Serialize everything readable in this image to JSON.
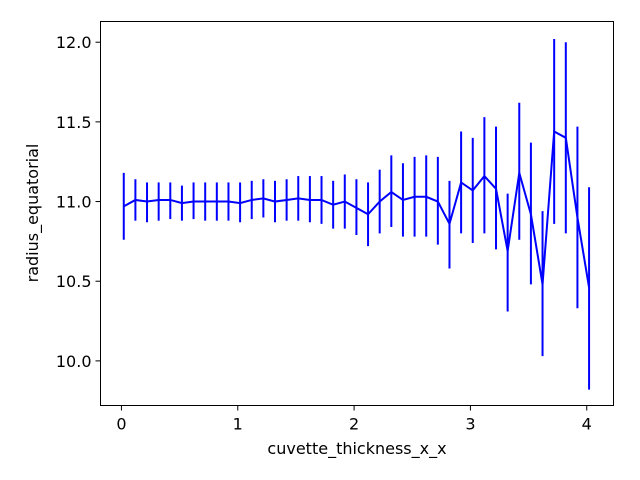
{
  "chart_data": {
    "type": "line",
    "title": "",
    "xlabel": "cuvette_thickness_x_x",
    "ylabel": "radius_equatorial",
    "xlim": [
      -0.18,
      4.23
    ],
    "ylim": [
      9.72,
      12.13
    ],
    "xticks": [
      0,
      1,
      2,
      3,
      4
    ],
    "xtick_labels": [
      "0",
      "1",
      "2",
      "3",
      "4"
    ],
    "yticks": [
      10.0,
      10.5,
      11.0,
      11.5,
      12.0
    ],
    "ytick_labels": [
      "10.0",
      "10.5",
      "11.0",
      "11.5",
      "12.0"
    ],
    "grid": false,
    "series": [
      {
        "color": "#0000ff",
        "x": [
          0.02,
          0.12,
          0.22,
          0.32,
          0.42,
          0.52,
          0.62,
          0.72,
          0.82,
          0.92,
          1.02,
          1.12,
          1.22,
          1.32,
          1.42,
          1.52,
          1.62,
          1.72,
          1.82,
          1.92,
          2.02,
          2.12,
          2.22,
          2.32,
          2.42,
          2.52,
          2.62,
          2.72,
          2.82,
          2.92,
          3.02,
          3.12,
          3.22,
          3.32,
          3.42,
          3.52,
          3.62,
          3.72,
          3.82,
          3.92,
          4.02
        ],
        "y": [
          10.97,
          11.01,
          11.0,
          11.01,
          11.01,
          10.99,
          11.0,
          11.0,
          11.0,
          11.0,
          10.99,
          11.01,
          11.02,
          11.0,
          11.01,
          11.02,
          11.01,
          11.01,
          10.98,
          11.0,
          10.96,
          10.92,
          11.0,
          11.06,
          11.01,
          11.03,
          11.03,
          11.0,
          10.86,
          11.12,
          11.07,
          11.16,
          11.08,
          10.69,
          11.18,
          10.92,
          10.48,
          11.44,
          11.4,
          10.9,
          10.46
        ],
        "yerr_low": [
          10.76,
          10.88,
          10.87,
          10.88,
          10.89,
          10.88,
          10.89,
          10.88,
          10.88,
          10.88,
          10.87,
          10.89,
          10.9,
          10.87,
          10.88,
          10.88,
          10.87,
          10.86,
          10.83,
          10.83,
          10.79,
          10.72,
          10.8,
          10.84,
          10.78,
          10.78,
          10.78,
          10.73,
          10.58,
          10.8,
          10.74,
          10.8,
          10.7,
          10.31,
          10.76,
          10.48,
          10.03,
          10.86,
          10.8,
          10.33,
          9.82
        ],
        "yerr_high": [
          11.18,
          11.14,
          11.12,
          11.12,
          11.12,
          11.1,
          11.12,
          11.12,
          11.12,
          11.12,
          11.12,
          11.13,
          11.14,
          11.13,
          11.14,
          11.16,
          11.16,
          11.16,
          11.13,
          11.17,
          11.14,
          11.12,
          11.2,
          11.29,
          11.24,
          11.28,
          11.29,
          11.28,
          11.13,
          11.44,
          11.4,
          11.53,
          11.47,
          11.05,
          11.62,
          11.37,
          10.94,
          12.02,
          12.0,
          11.47,
          11.09
        ]
      }
    ]
  }
}
